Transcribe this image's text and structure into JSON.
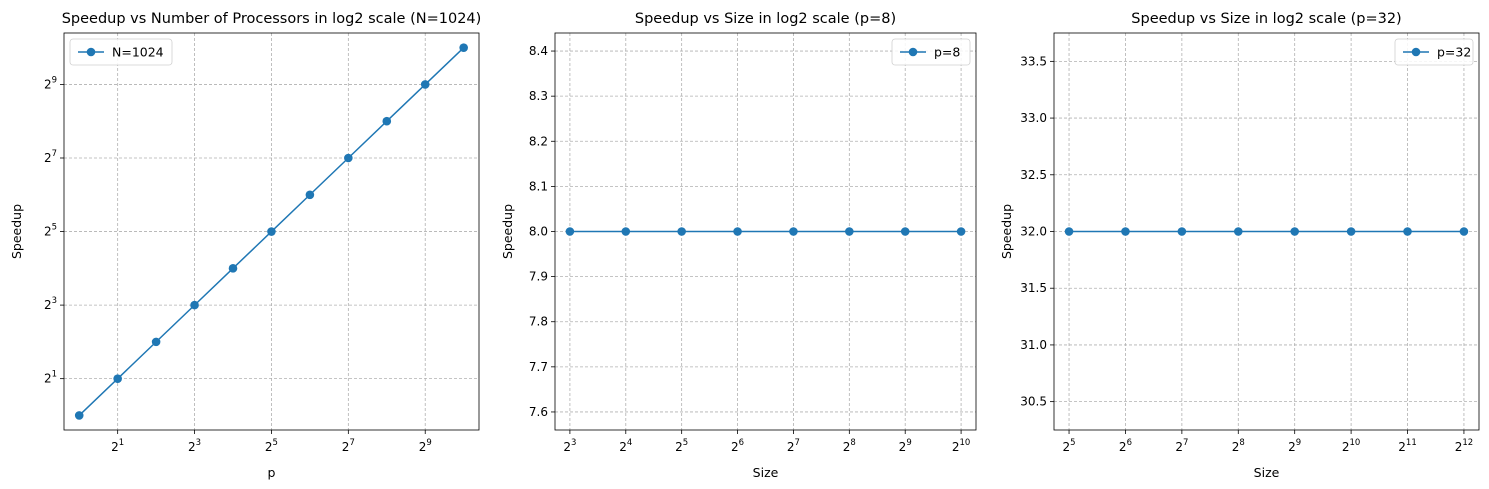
{
  "chart_data": [
    {
      "type": "line",
      "title": "Speedup vs Number of Processors in log2 scale (N=1024)",
      "xlabel": "p",
      "ylabel": "Speedup",
      "xscale": "log2",
      "yscale": "log2",
      "xlim": [
        0.76,
        1350
      ],
      "ylim": [
        0.76,
        1350
      ],
      "xticks": [
        {
          "value": 2,
          "base": "2",
          "exp": "1"
        },
        {
          "value": 8,
          "base": "2",
          "exp": "3"
        },
        {
          "value": 32,
          "base": "2",
          "exp": "5"
        },
        {
          "value": 128,
          "base": "2",
          "exp": "7"
        },
        {
          "value": 512,
          "base": "2",
          "exp": "9"
        }
      ],
      "yticks": [
        {
          "value": 2,
          "base": "2",
          "exp": "1"
        },
        {
          "value": 8,
          "base": "2",
          "exp": "3"
        },
        {
          "value": 32,
          "base": "2",
          "exp": "5"
        },
        {
          "value": 128,
          "base": "2",
          "exp": "7"
        },
        {
          "value": 512,
          "base": "2",
          "exp": "9"
        }
      ],
      "grid": true,
      "legend_position": "upper left",
      "series": [
        {
          "name": "N=1024",
          "color": "#1f77b4",
          "x": [
            1,
            2,
            4,
            8,
            16,
            32,
            64,
            128,
            256,
            512,
            1024
          ],
          "y": [
            1,
            2,
            4,
            8,
            16,
            32,
            64,
            128,
            256,
            512,
            1024
          ]
        }
      ]
    },
    {
      "type": "line",
      "title": "Speedup vs Size in log2 scale (p=8)",
      "xlabel": "Size",
      "ylabel": "Speedup",
      "xscale": "log2",
      "yscale": "linear",
      "xlim": [
        6.65,
        1232
      ],
      "ylim": [
        7.56,
        8.44
      ],
      "xticks": [
        {
          "value": 8,
          "base": "2",
          "exp": "3"
        },
        {
          "value": 16,
          "base": "2",
          "exp": "4"
        },
        {
          "value": 32,
          "base": "2",
          "exp": "5"
        },
        {
          "value": 64,
          "base": "2",
          "exp": "6"
        },
        {
          "value": 128,
          "base": "2",
          "exp": "7"
        },
        {
          "value": 256,
          "base": "2",
          "exp": "8"
        },
        {
          "value": 512,
          "base": "2",
          "exp": "9"
        },
        {
          "value": 1024,
          "base": "2",
          "exp": "10"
        }
      ],
      "yticks": [
        {
          "value": 7.6,
          "label": "7.6"
        },
        {
          "value": 7.7,
          "label": "7.7"
        },
        {
          "value": 7.8,
          "label": "7.8"
        },
        {
          "value": 7.9,
          "label": "7.9"
        },
        {
          "value": 8.0,
          "label": "8.0"
        },
        {
          "value": 8.1,
          "label": "8.1"
        },
        {
          "value": 8.2,
          "label": "8.2"
        },
        {
          "value": 8.3,
          "label": "8.3"
        },
        {
          "value": 8.4,
          "label": "8.4"
        }
      ],
      "grid": true,
      "legend_position": "upper right",
      "series": [
        {
          "name": "p=8",
          "color": "#1f77b4",
          "x": [
            8,
            16,
            32,
            64,
            128,
            256,
            512,
            1024
          ],
          "y": [
            8,
            8,
            8,
            8,
            8,
            8,
            8,
            8
          ]
        }
      ]
    },
    {
      "type": "line",
      "title": "Speedup vs Size in log2 scale (p=32)",
      "xlabel": "Size",
      "ylabel": "Speedup",
      "xscale": "log2",
      "yscale": "linear",
      "xlim": [
        26.6,
        4929
      ],
      "ylim": [
        30.25,
        33.75
      ],
      "xticks": [
        {
          "value": 32,
          "base": "2",
          "exp": "5"
        },
        {
          "value": 64,
          "base": "2",
          "exp": "6"
        },
        {
          "value": 128,
          "base": "2",
          "exp": "7"
        },
        {
          "value": 256,
          "base": "2",
          "exp": "8"
        },
        {
          "value": 512,
          "base": "2",
          "exp": "9"
        },
        {
          "value": 1024,
          "base": "2",
          "exp": "10"
        },
        {
          "value": 2048,
          "base": "2",
          "exp": "11"
        },
        {
          "value": 4096,
          "base": "2",
          "exp": "12"
        }
      ],
      "yticks": [
        {
          "value": 30.5,
          "label": "30.5"
        },
        {
          "value": 31.0,
          "label": "31.0"
        },
        {
          "value": 31.5,
          "label": "31.5"
        },
        {
          "value": 32.0,
          "label": "32.0"
        },
        {
          "value": 32.5,
          "label": "32.5"
        },
        {
          "value": 33.0,
          "label": "33.0"
        },
        {
          "value": 33.5,
          "label": "33.5"
        }
      ],
      "grid": true,
      "legend_position": "upper right",
      "series": [
        {
          "name": "p=32",
          "color": "#1f77b4",
          "x": [
            32,
            64,
            128,
            256,
            512,
            1024,
            2048,
            4096
          ],
          "y": [
            32,
            32,
            32,
            32,
            32,
            32,
            32,
            32
          ]
        }
      ]
    }
  ]
}
